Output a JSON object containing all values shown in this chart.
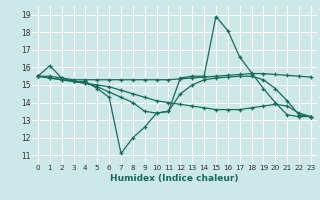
{
  "title": "",
  "xlabel": "Humidex (Indice chaleur)",
  "bg_color": "#cce8e8",
  "grid_color": "#ffffff",
  "line_color": "#1a6b5a",
  "xlim": [
    -0.5,
    23.5
  ],
  "ylim": [
    10.5,
    19.5
  ],
  "yticks": [
    11,
    12,
    13,
    14,
    15,
    16,
    17,
    18,
    19
  ],
  "xticks": [
    0,
    1,
    2,
    3,
    4,
    5,
    6,
    7,
    8,
    9,
    10,
    11,
    12,
    13,
    14,
    15,
    16,
    17,
    18,
    19,
    20,
    21,
    22,
    23
  ],
  "lines": [
    {
      "x": [
        0,
        1,
        2,
        3,
        4,
        5,
        6,
        7,
        8,
        9,
        10,
        11,
        12,
        13,
        14,
        15,
        16,
        17,
        18,
        19,
        20,
        21,
        22,
        23
      ],
      "y": [
        15.5,
        16.1,
        15.4,
        15.2,
        15.2,
        14.8,
        14.3,
        11.1,
        12.0,
        12.6,
        13.4,
        13.5,
        15.4,
        15.5,
        15.5,
        18.9,
        18.1,
        16.6,
        15.7,
        14.8,
        14.0,
        13.3,
        13.2,
        13.2
      ]
    },
    {
      "x": [
        0,
        1,
        2,
        3,
        4,
        5,
        6,
        7,
        8,
        9,
        10,
        11,
        12,
        13,
        14,
        15,
        16,
        17,
        18,
        19,
        20,
        21,
        22,
        23
      ],
      "y": [
        15.5,
        15.5,
        15.4,
        15.3,
        15.3,
        15.3,
        15.3,
        15.3,
        15.3,
        15.3,
        15.3,
        15.3,
        15.35,
        15.4,
        15.45,
        15.5,
        15.55,
        15.6,
        15.65,
        15.65,
        15.6,
        15.55,
        15.5,
        15.45
      ]
    },
    {
      "x": [
        0,
        1,
        2,
        3,
        4,
        5,
        6,
        7,
        8,
        9,
        10,
        11,
        12,
        13,
        14,
        15,
        16,
        17,
        18,
        19,
        20,
        21,
        22,
        23
      ],
      "y": [
        15.5,
        15.4,
        15.3,
        15.2,
        15.1,
        15.0,
        14.9,
        14.7,
        14.5,
        14.3,
        14.1,
        14.0,
        13.9,
        13.8,
        13.7,
        13.6,
        13.6,
        13.6,
        13.7,
        13.8,
        13.9,
        13.8,
        13.4,
        13.2
      ]
    },
    {
      "x": [
        0,
        1,
        2,
        3,
        4,
        5,
        6,
        7,
        8,
        9,
        10,
        11,
        12,
        13,
        14,
        15,
        16,
        17,
        18,
        19,
        20,
        21,
        22,
        23
      ],
      "y": [
        15.5,
        15.4,
        15.3,
        15.2,
        15.1,
        14.9,
        14.6,
        14.3,
        14.0,
        13.5,
        13.4,
        13.5,
        14.5,
        15.0,
        15.3,
        15.4,
        15.45,
        15.5,
        15.5,
        15.3,
        14.8,
        14.1,
        13.3,
        13.2
      ]
    }
  ]
}
